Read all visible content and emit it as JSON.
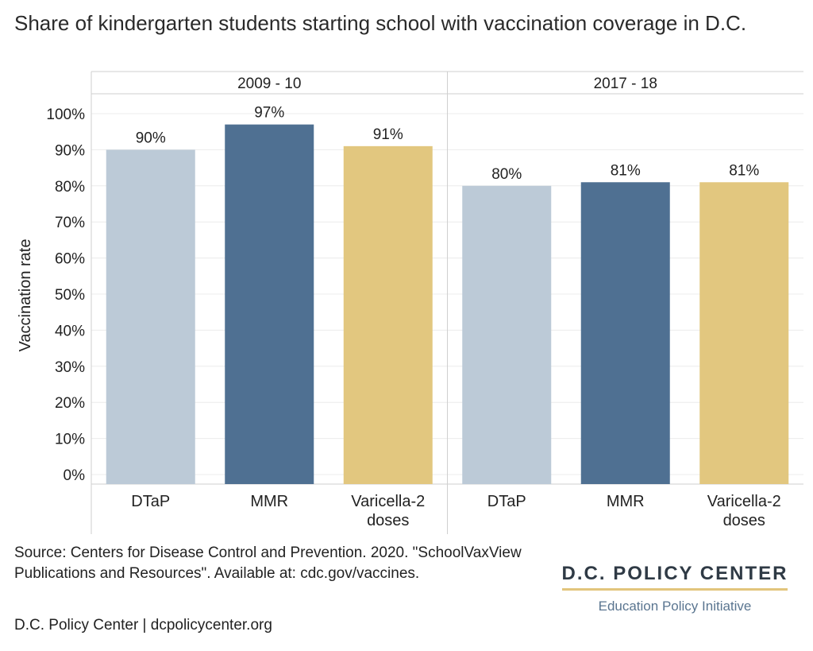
{
  "title": "Share of kindergarten students starting school with vaccination coverage in D.C.",
  "source": "Source: Centers for Disease Control and Prevention. 2020. \"SchoolVaxView Publications and Resources\". Available at: cdc.gov/vaccines.",
  "credit": "D.C. Policy Center | dcpolicycenter.org",
  "logo": {
    "name": "D.C. POLICY CENTER",
    "subtitle": "Education Policy Initiative"
  },
  "colors": {
    "DTaP": "#bccad7",
    "MMR": "#4f7092",
    "Varicella-2 doses": "#e2c77f"
  },
  "chart_data": {
    "type": "bar",
    "ylabel": "Vaccination rate",
    "ylim": [
      0,
      100
    ],
    "yticks": [
      "0%",
      "10%",
      "20%",
      "30%",
      "40%",
      "50%",
      "60%",
      "70%",
      "80%",
      "90%",
      "100%"
    ],
    "panels": [
      {
        "label": "2009 - 10",
        "categories": [
          "DTaP",
          "MMR",
          "Varicella-2 doses"
        ],
        "values": [
          90,
          97,
          91
        ],
        "value_labels": [
          "90%",
          "97%",
          "91%"
        ]
      },
      {
        "label": "2017 - 18",
        "categories": [
          "DTaP",
          "MMR",
          "Varicella-2 doses"
        ],
        "values": [
          80,
          81,
          81
        ],
        "value_labels": [
          "80%",
          "81%",
          "81%"
        ]
      }
    ],
    "grid": true
  }
}
